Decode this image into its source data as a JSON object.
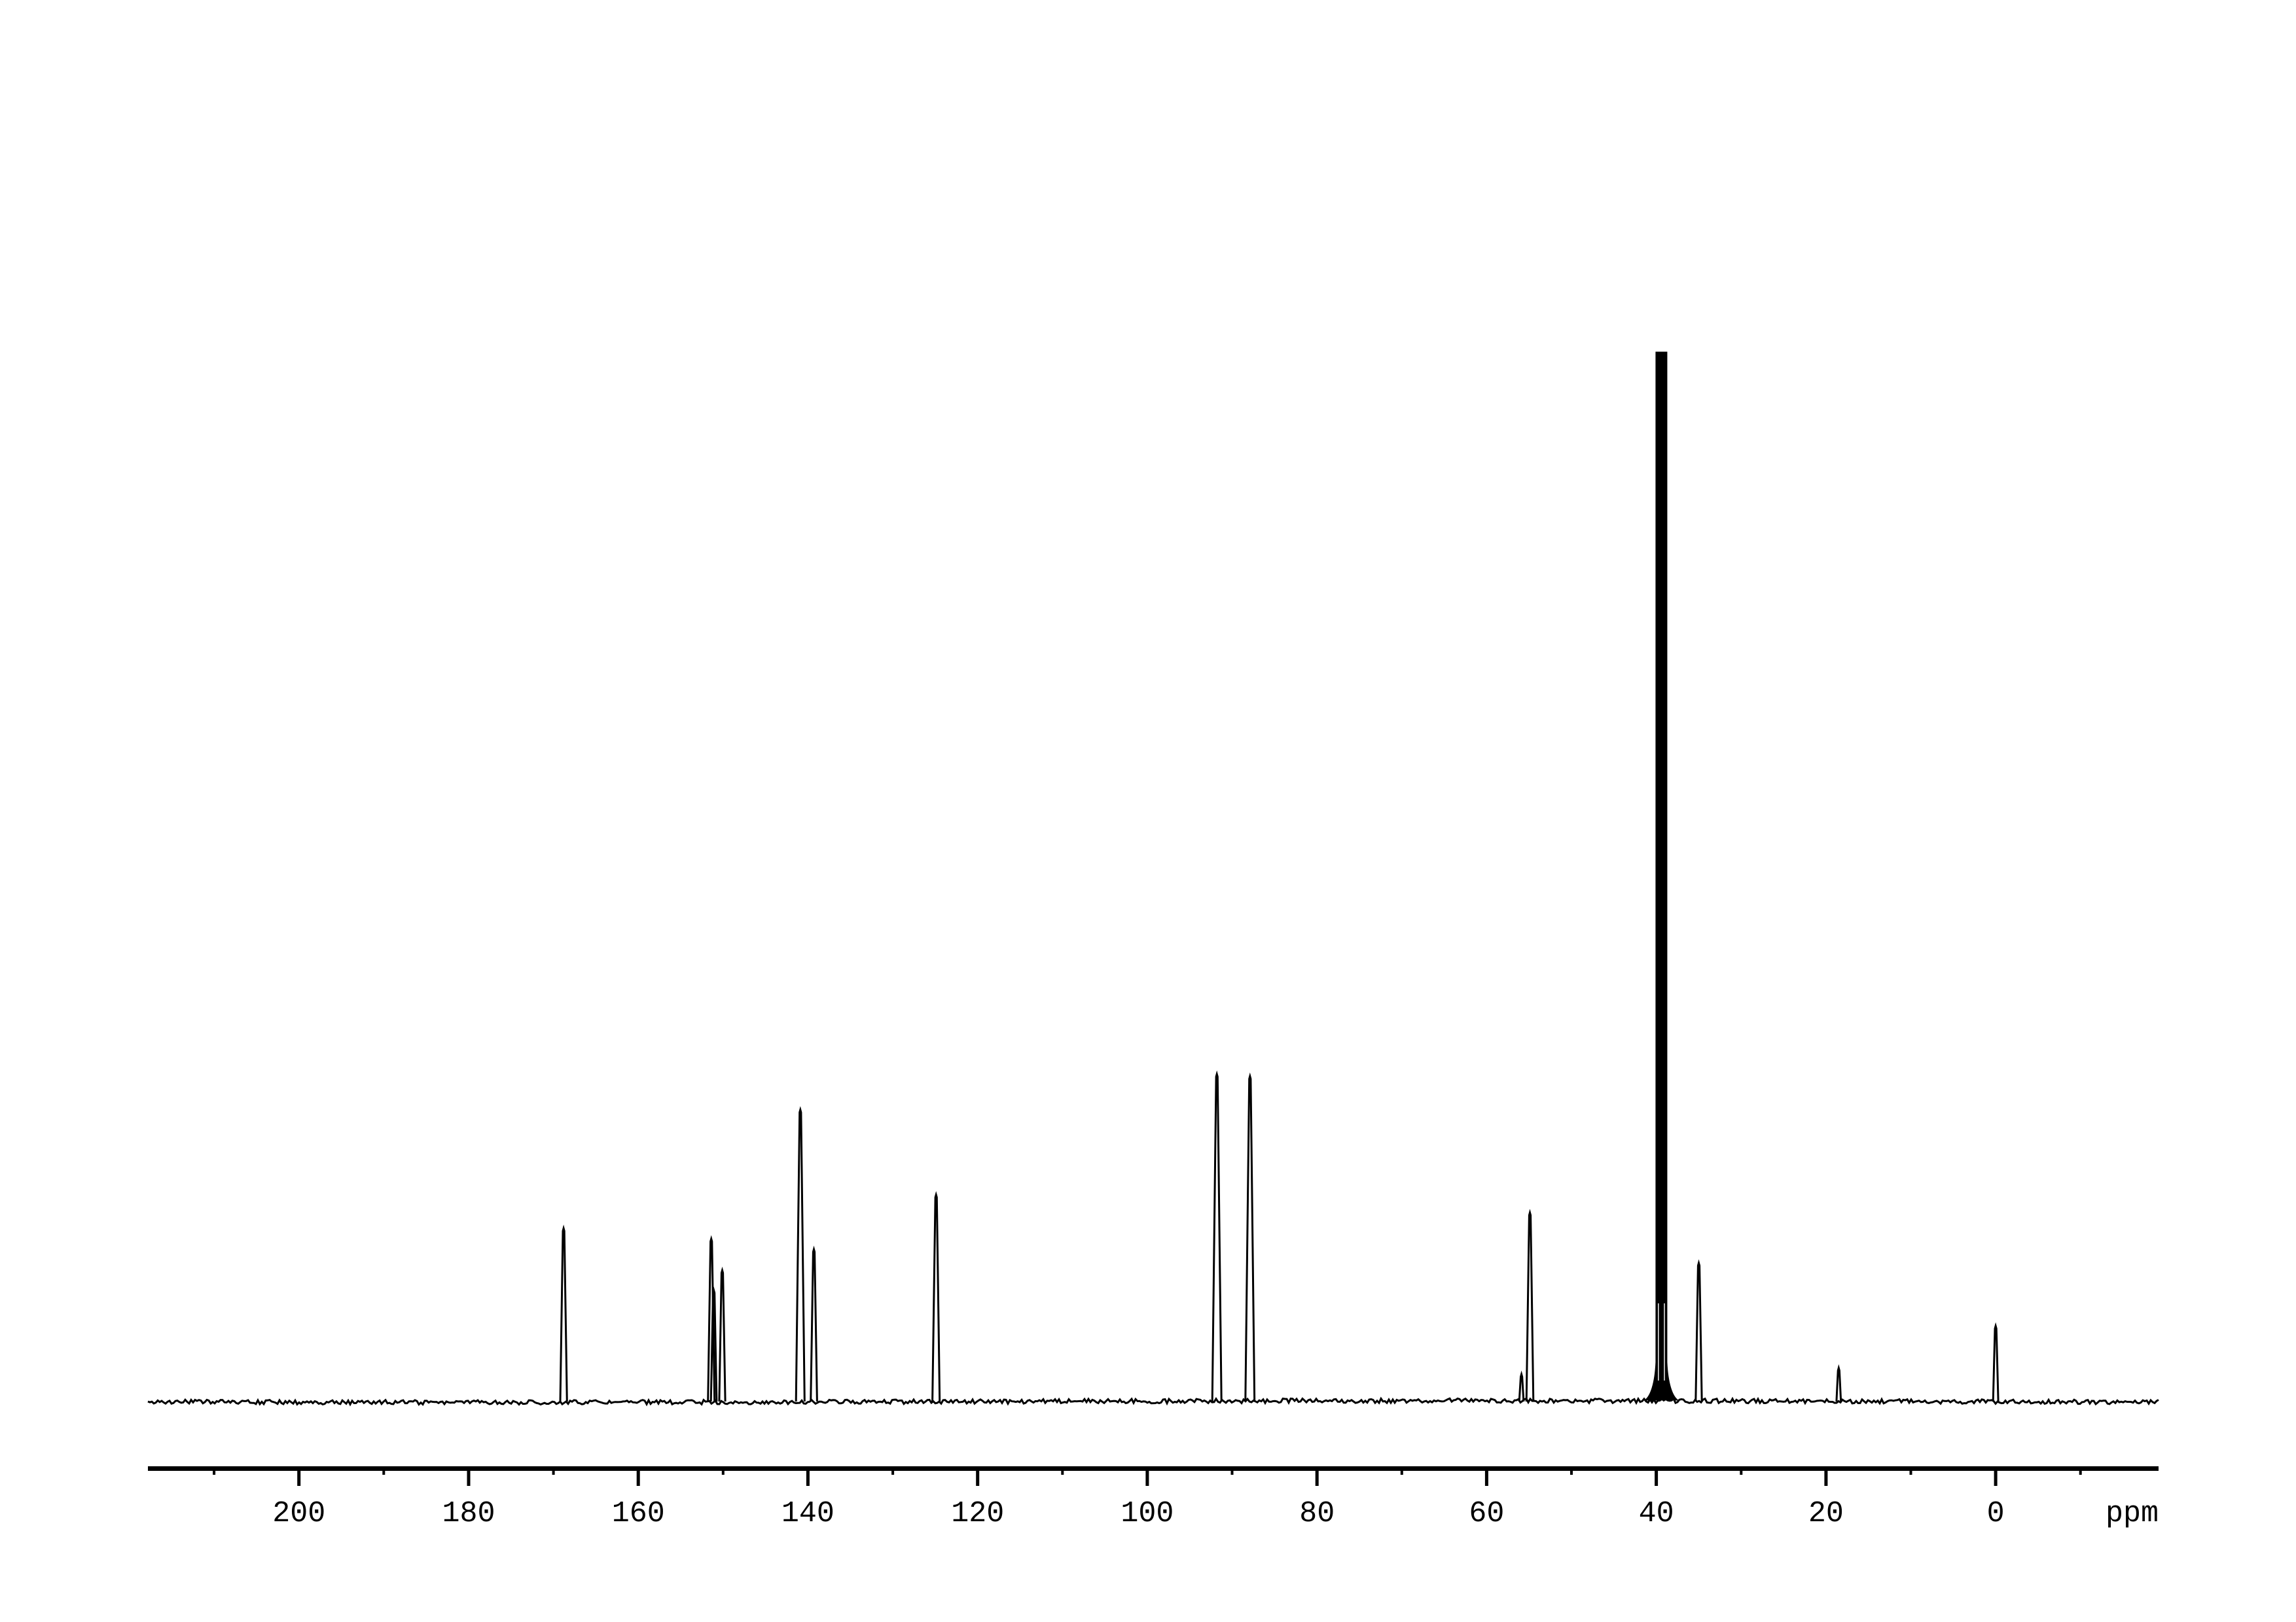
{
  "page": {
    "background_color": "#ffffff",
    "foreground_color": "#000000"
  },
  "chart_data": {
    "type": "line",
    "subtype": "13C-NMR-spectrum",
    "title": "",
    "xlabel": "ppm",
    "ylabel": "",
    "legend": false,
    "grid": false,
    "x_axis": {
      "unit_label": "ppm",
      "direction": "decreasing-left-to-right",
      "range_ppm": [
        217.8,
        -19.2
      ],
      "major_tick_ppm": [
        200,
        180,
        160,
        140,
        120,
        100,
        80,
        60,
        40,
        20,
        0
      ],
      "major_tick_labels": [
        "200",
        "180",
        "160",
        "140",
        "120",
        "100",
        "80",
        "60",
        "40",
        "20",
        "0"
      ],
      "minor_tick_ppm": [
        210,
        190,
        170,
        150,
        130,
        110,
        90,
        70,
        50,
        30,
        10,
        -10
      ]
    },
    "y_axis": {
      "shown": false,
      "max_rel_intensity": 1.0
    },
    "baseline_noise_rel_amplitude": 0.004,
    "peaks": [
      {
        "ppm": 168.8,
        "rel_intensity": 0.165,
        "solvent": false
      },
      {
        "ppm": 151.4,
        "rel_intensity": 0.155,
        "solvent": false
      },
      {
        "ppm": 151.1,
        "rel_intensity": 0.106,
        "solvent": false
      },
      {
        "ppm": 150.1,
        "rel_intensity": 0.125,
        "solvent": false
      },
      {
        "ppm": 140.9,
        "rel_intensity": 0.278,
        "solvent": false
      },
      {
        "ppm": 139.3,
        "rel_intensity": 0.145,
        "solvent": false
      },
      {
        "ppm": 124.9,
        "rel_intensity": 0.197,
        "solvent": false
      },
      {
        "ppm": 91.8,
        "rel_intensity": 0.312,
        "solvent": false
      },
      {
        "ppm": 87.9,
        "rel_intensity": 0.31,
        "solvent": false
      },
      {
        "ppm": 55.9,
        "rel_intensity": 0.026,
        "solvent": false
      },
      {
        "ppm": 54.9,
        "rel_intensity": 0.18,
        "solvent": false
      },
      {
        "ppm": 39.4,
        "rel_intensity": 1.0,
        "solvent": true,
        "shape": "dense-clipped-multiplet"
      },
      {
        "ppm": 35.0,
        "rel_intensity": 0.132,
        "solvent": false
      },
      {
        "ppm": 18.5,
        "rel_intensity": 0.032,
        "solvent": false
      },
      {
        "ppm": 0.0,
        "rel_intensity": 0.072,
        "solvent": false
      }
    ]
  }
}
